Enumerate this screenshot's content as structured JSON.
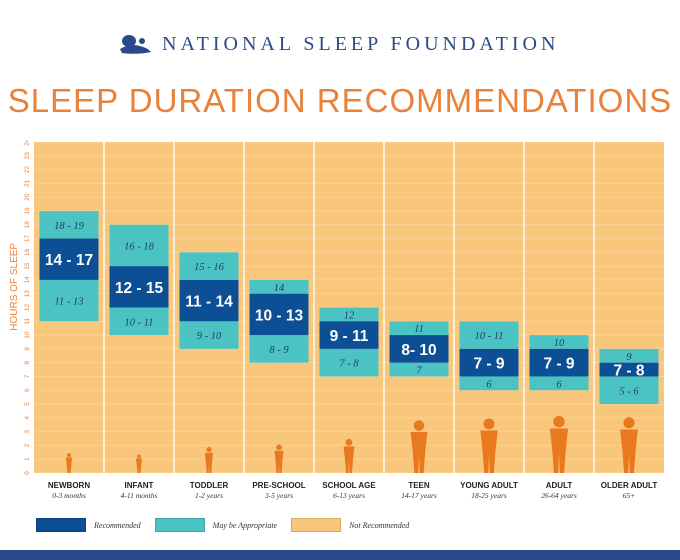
{
  "header": {
    "org_name": "NATIONAL SLEEP FOUNDATION",
    "title": "SLEEP DURATION RECOMMENDATIONS",
    "logo_icon": "sleeping-figure-icon"
  },
  "colors": {
    "recommended": "#0d4f95",
    "may_be_appropriate": "#4cc3c3",
    "not_recommended": "#f9c77c",
    "axis_text": "#e8823a",
    "silhouette": "#e8791e",
    "brand": "#2a4a8c"
  },
  "chart_data": {
    "type": "bar",
    "ylabel": "HOURS OF SLEEP",
    "ylim": [
      0,
      24
    ],
    "yticks": [
      "0",
      "1",
      "2",
      "3",
      "4",
      "5",
      "6",
      "7",
      "8",
      "9",
      "10",
      "11",
      "12",
      "13",
      "14",
      "15",
      "16",
      "17",
      "18",
      "19",
      "20",
      "21",
      "22",
      "23",
      "24"
    ],
    "grid": true,
    "categories": [
      {
        "label": "NEWBORN",
        "age": "0-3 months"
      },
      {
        "label": "INFANT",
        "age": "4-11 months"
      },
      {
        "label": "TODDLER",
        "age": "1-2 years"
      },
      {
        "label": "PRE-SCHOOL",
        "age": "3-5 years"
      },
      {
        "label": "SCHOOL AGE",
        "age": "6-13 years"
      },
      {
        "label": "TEEN",
        "age": "14-17 years"
      },
      {
        "label": "YOUNG ADULT",
        "age": "18-25 years"
      },
      {
        "label": "ADULT",
        "age": "26-64 years"
      },
      {
        "label": "OLDER ADULT",
        "age": "65+"
      }
    ],
    "series": [
      {
        "name": "Recommended",
        "ranges": [
          [
            14,
            17
          ],
          [
            12,
            15
          ],
          [
            11,
            14
          ],
          [
            10,
            13
          ],
          [
            9,
            11
          ],
          [
            8,
            10
          ],
          [
            7,
            9
          ],
          [
            7,
            9
          ],
          [
            7,
            8
          ]
        ],
        "labels": [
          "14 - 17",
          "12 - 15",
          "11 - 14",
          "10 - 13",
          "9 - 11",
          "8- 10",
          "7 - 9",
          "7 - 9",
          "7 - 8"
        ]
      },
      {
        "name": "May be Appropriate",
        "upper_ranges": [
          [
            17,
            19
          ],
          [
            15,
            18
          ],
          [
            14,
            16
          ],
          [
            13,
            14
          ],
          [
            11,
            12
          ],
          [
            10,
            11
          ],
          [
            9,
            11
          ],
          [
            9,
            10
          ],
          [
            8,
            9
          ]
        ],
        "upper_labels": [
          "18 - 19",
          "16 - 18",
          "15 - 16",
          "14",
          "12",
          "11",
          "10 - 11",
          "10",
          "9"
        ],
        "lower_ranges": [
          [
            11,
            14
          ],
          [
            10,
            12
          ],
          [
            9,
            11
          ],
          [
            8,
            10
          ],
          [
            7,
            9
          ],
          [
            7,
            8
          ],
          [
            6,
            7
          ],
          [
            6,
            7
          ],
          [
            5,
            7
          ]
        ],
        "lower_labels": [
          "11 - 13",
          "10 - 11",
          "9 - 10",
          "8 - 9",
          "7 - 8",
          "7",
          "6",
          "6",
          "5 - 6"
        ]
      }
    ],
    "legend": [
      "Recommended",
      "May be Appropriate",
      "Not Recommended"
    ],
    "legend_position": "bottom-left"
  }
}
